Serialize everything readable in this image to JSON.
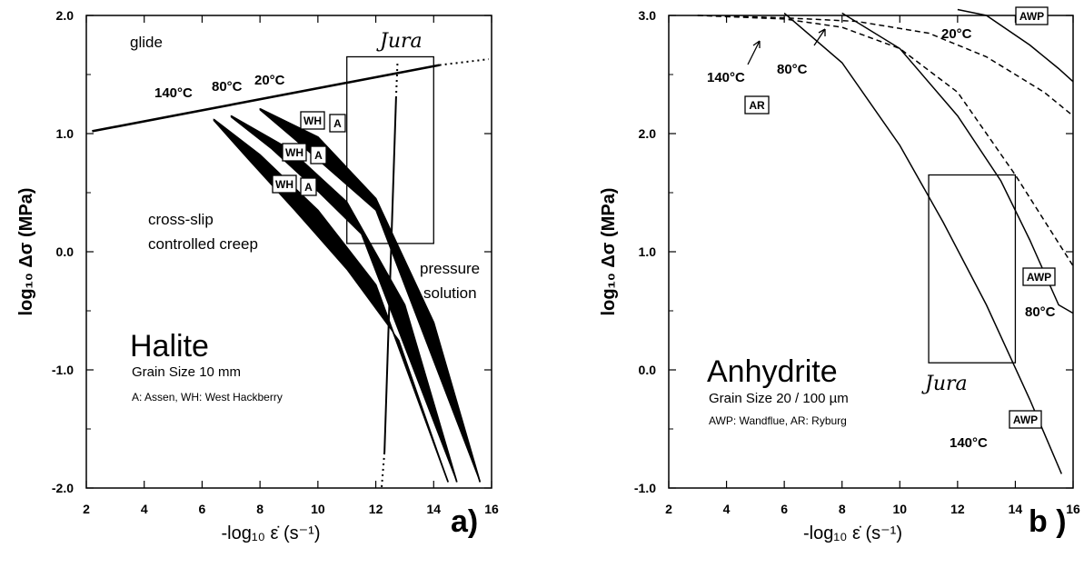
{
  "chart_data": [
    {
      "type": "line",
      "panel_label": "a)",
      "title": "Halite",
      "subtitle": "Grain Size 10 mm",
      "legend_note": "A: Assen,  WH: West Hackberry",
      "xlabel": "-log₁₀ ε̇ (s⁻¹)",
      "ylabel": "log₁₀ Δσ (MPa)",
      "xlim": [
        2,
        16
      ],
      "ylim": [
        -2.0,
        2.0
      ],
      "xticks": [
        "2",
        "4",
        "6",
        "8",
        "10",
        "12",
        "14",
        "16"
      ],
      "yticks": [
        "-2.0",
        "-1.0",
        "0.0",
        "1.0",
        "2.0"
      ],
      "regions": [
        "glide",
        "cross-slip",
        "controlled creep",
        "pressure",
        "solution"
      ],
      "domain_label": "Jura",
      "domain_box": {
        "x": [
          11.0,
          14.0
        ],
        "y": [
          0.07,
          1.65
        ]
      },
      "glide_boundary": [
        [
          2.2,
          1.02
        ],
        [
          14.2,
          1.58
        ]
      ],
      "glide_boundary_dotted": [
        [
          14.2,
          1.58
        ],
        [
          15.9,
          1.63
        ]
      ],
      "temperature_labels": [
        "140°C",
        "80°C",
        "20°C"
      ],
      "sample_tags": [
        "WH",
        "A"
      ],
      "series": [
        {
          "name": "20°C",
          "band_upper": [
            [
              8.0,
              1.21
            ],
            [
              10.0,
              0.97
            ],
            [
              12.0,
              0.45
            ],
            [
              14.0,
              -0.6
            ],
            [
              15.6,
              -1.95
            ]
          ],
          "band_lower": [
            [
              8.0,
              1.2
            ],
            [
              9.2,
              0.95
            ],
            [
              10.6,
              0.65
            ],
            [
              12.0,
              0.35
            ]
          ]
        },
        {
          "name": "80°C",
          "band_upper": [
            [
              7.0,
              1.15
            ],
            [
              9.0,
              0.87
            ],
            [
              11.0,
              0.42
            ],
            [
              13.0,
              -0.45
            ],
            [
              14.8,
              -1.95
            ]
          ],
          "band_lower": [
            [
              7.0,
              1.14
            ],
            [
              8.4,
              0.87
            ],
            [
              10.0,
              0.51
            ],
            [
              11.5,
              0.15
            ]
          ]
        },
        {
          "name": "140°C",
          "band_upper": [
            [
              6.4,
              1.12
            ],
            [
              8.0,
              0.82
            ],
            [
              10.0,
              0.35
            ],
            [
              12.0,
              -0.28
            ],
            [
              14.5,
              -1.95
            ]
          ],
          "band_lower": [
            [
              6.4,
              1.11
            ],
            [
              7.6,
              0.78
            ],
            [
              9.2,
              0.35
            ],
            [
              11.0,
              -0.15
            ],
            [
              12.8,
              -0.75
            ]
          ]
        }
      ]
    },
    {
      "type": "line",
      "panel_label": "b )",
      "title": "Anhydrite",
      "subtitle": "Grain Size 20 / 100 µm",
      "legend_note": "AWP: Wandflue,  AR: Ryburg",
      "xlabel": "-log₁₀ ε̇ (s⁻¹)",
      "ylabel": "log₁₀ Δσ (MPa)",
      "xlim": [
        2,
        16
      ],
      "ylim": [
        -1.0,
        3.0
      ],
      "xticks": [
        "2",
        "4",
        "6",
        "8",
        "10",
        "12",
        "14",
        "16"
      ],
      "yticks": [
        "-1.0",
        "0.0",
        "1.0",
        "2.0",
        "3.0"
      ],
      "domain_label": "Jura",
      "domain_box": {
        "x": [
          11.0,
          14.0
        ],
        "y": [
          0.06,
          1.65
        ]
      },
      "temperature_labels": [
        "140°C",
        "80°C",
        "20°C"
      ],
      "sample_tags": [
        "AR",
        "AWP"
      ],
      "series": [
        {
          "name": "AWP 20°C",
          "style": "solid",
          "points": [
            [
              12.0,
              3.05
            ],
            [
              13.0,
              3.0
            ],
            [
              14.5,
              2.75
            ],
            [
              15.5,
              2.55
            ],
            [
              16.0,
              2.44
            ]
          ]
        },
        {
          "name": "AWP 80°C",
          "style": "solid",
          "points": [
            [
              8.0,
              3.02
            ],
            [
              10.0,
              2.72
            ],
            [
              12.0,
              2.15
            ],
            [
              13.5,
              1.6
            ],
            [
              14.5,
              1.1
            ],
            [
              15.5,
              0.55
            ],
            [
              16.0,
              0.48
            ]
          ]
        },
        {
          "name": "AWP 140°C",
          "style": "solid",
          "points": [
            [
              6.0,
              3.02
            ],
            [
              8.0,
              2.6
            ],
            [
              10.0,
              1.9
            ],
            [
              11.5,
              1.25
            ],
            [
              13.0,
              0.55
            ],
            [
              14.5,
              -0.25
            ],
            [
              15.6,
              -0.88
            ]
          ]
        },
        {
          "name": "AR 80°C",
          "style": "dashed",
          "points": [
            [
              3.0,
              3.0
            ],
            [
              6.0,
              2.97
            ],
            [
              8.0,
              2.9
            ],
            [
              10.0,
              2.72
            ],
            [
              12.0,
              2.35
            ],
            [
              14.0,
              1.65
            ],
            [
              16.0,
              0.88
            ]
          ]
        },
        {
          "name": "AR 140°C",
          "style": "dashed",
          "points": [
            [
              3.0,
              3.0
            ],
            [
              6.0,
              2.98
            ],
            [
              8.5,
              2.95
            ],
            [
              11.0,
              2.85
            ],
            [
              13.0,
              2.65
            ],
            [
              15.0,
              2.35
            ],
            [
              16.0,
              2.15
            ]
          ]
        }
      ]
    }
  ]
}
